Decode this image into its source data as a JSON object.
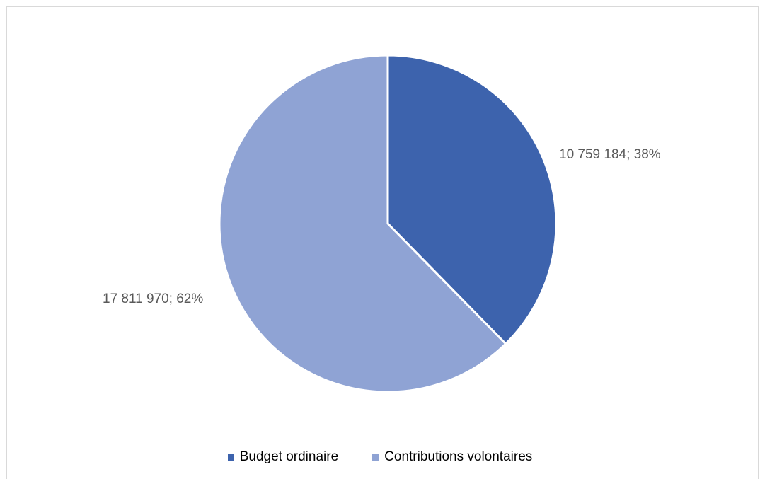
{
  "chart_data": {
    "type": "pie",
    "categories": [
      "Budget ordinaire",
      "Contributions volontaires"
    ],
    "values": [
      10759184,
      17811970
    ],
    "percentages": [
      38,
      62
    ],
    "data_labels": [
      "10 759 184; 38%",
      "17 811 970; 62%"
    ],
    "colors": [
      "#3d63ad",
      "#8fa3d4"
    ],
    "start_angle_deg": 0,
    "direction": "clockwise",
    "legend_position": "bottom",
    "title": ""
  },
  "legend": {
    "items": [
      {
        "label": "Budget ordinaire",
        "color": "#3d63ad"
      },
      {
        "label": "Contributions volontaires",
        "color": "#8fa3d4"
      }
    ]
  }
}
